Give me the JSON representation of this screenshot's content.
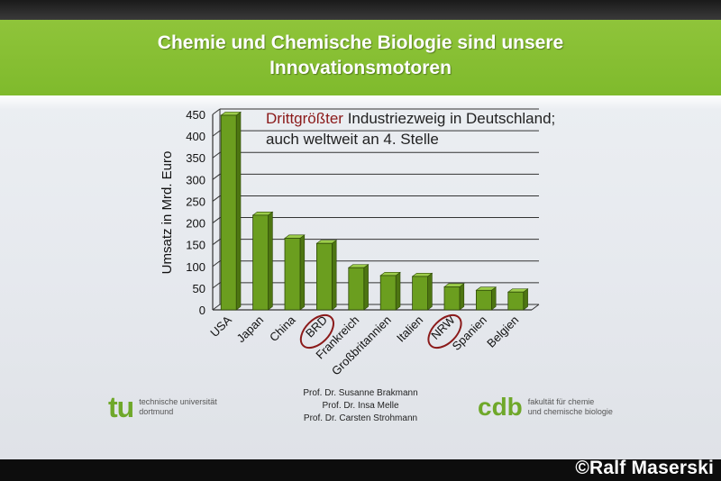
{
  "slide": {
    "title_line1": "Chemie und Chemische Biologie sind unsere",
    "title_line2": "Innovationsmotoren",
    "subtitle_highlight": "Drittgrößter",
    "subtitle_rest": " Industriezweig in Deutschland;",
    "subtitle_line2": "auch weltweit an 4. Stelle",
    "authors": [
      "Prof. Dr. Susanne Brakmann",
      "Prof. Dr. Insa Melle",
      "Prof. Dr. Carsten Strohmann"
    ],
    "logo_left_mark": "tu",
    "logo_left_caption": [
      "technische universität",
      "dortmund"
    ],
    "logo_right_mark": "cdb",
    "logo_right_caption": [
      "fakultät für chemie",
      "und chemische biologie"
    ],
    "credit": "©Ralf Maserski"
  },
  "chart_data": {
    "type": "bar",
    "ylabel": "Umsatz in Mrd. Euro",
    "xlabel": "",
    "ylim": [
      0,
      450
    ],
    "yticks": [
      0,
      50,
      100,
      150,
      200,
      250,
      300,
      350,
      400,
      450
    ],
    "grid": true,
    "categories": [
      "USA",
      "Japan",
      "China",
      "BRD",
      "Frankreich",
      "Großbritannien",
      "Italien",
      "NRW",
      "Spanien",
      "Belgien"
    ],
    "values": [
      448,
      218,
      165,
      153,
      97,
      79,
      77,
      53,
      45,
      41
    ],
    "circled": [
      "BRD",
      "NRW"
    ],
    "colors": {
      "bar": "#6b9e1f",
      "bar_dark": "#4d7512",
      "bar_top": "#9ccc4a",
      "circle": "#8b1a1a"
    }
  }
}
